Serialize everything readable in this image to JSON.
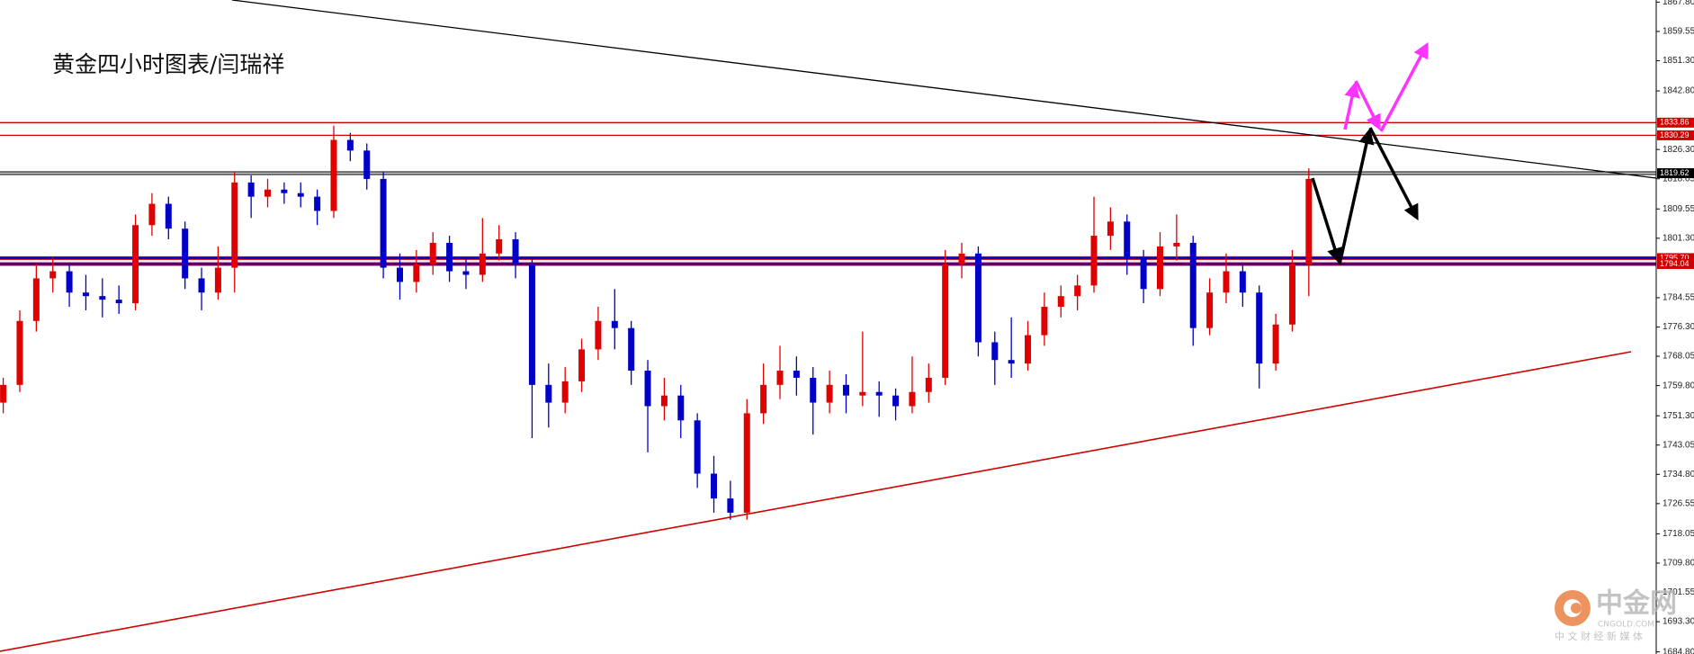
{
  "chart_data": {
    "type": "candlestick",
    "title": "黄金四小时图表/闫瑞祥",
    "up_color": "#e00000",
    "down_color": "#0000c8",
    "ylim": [
      1684.2,
      1868.4
    ],
    "yticks": [
      {
        "value": 1867.8,
        "label": "1867.80"
      },
      1859.55,
      {
        "value": 1851.3,
        "label": "1851.30"
      },
      {
        "value": 1842.8,
        "label": "1842.80"
      },
      {
        "value": 1826.3,
        "label": "1826.30"
      },
      1818.05,
      1809.55,
      {
        "value": 1801.3,
        "label": "1801.30"
      },
      1784.55,
      {
        "value": 1776.3,
        "label": "1776.30"
      },
      1768.05,
      {
        "value": 1759.8,
        "label": "1759.80"
      },
      {
        "value": 1751.3,
        "label": "1751.30"
      },
      1743.05,
      {
        "value": 1734.8,
        "label": "1734.80"
      },
      1726.55,
      1718.05,
      {
        "value": 1709.8,
        "label": "1709.80"
      },
      1701.55,
      {
        "value": 1693.3,
        "label": "1693.30"
      },
      {
        "value": 1684.8,
        "label": "1684.80"
      }
    ],
    "levels": [
      {
        "value": 1833.86,
        "color": "#d00000",
        "box_color": "#d00000"
      },
      {
        "value": 1830.29,
        "color": "#d00000",
        "box_color": "#d00000"
      },
      {
        "value": 1819.62,
        "color": "#c8c8c8",
        "box_color": "#000000"
      },
      {
        "value": 1795.7,
        "label": "1795.70",
        "color": "#0000c8",
        "box_color": "#d00000"
      },
      {
        "value": 1794.04,
        "color": "#0000c8",
        "box_color": "#d00000"
      }
    ],
    "ohlc": [
      [
        1755,
        1762,
        1752,
        1760
      ],
      [
        1760,
        1781,
        1758,
        1778
      ],
      [
        1778,
        1794,
        1775,
        1790
      ],
      [
        1790,
        1796,
        1786,
        1792
      ],
      [
        1792,
        1794,
        1782,
        1786
      ],
      [
        1786,
        1791,
        1781,
        1785
      ],
      [
        1785,
        1790,
        1779,
        1784
      ],
      [
        1784,
        1788,
        1780,
        1783
      ],
      [
        1783,
        1808,
        1781,
        1805
      ],
      [
        1805,
        1814,
        1802,
        1811
      ],
      [
        1811,
        1813,
        1801,
        1804
      ],
      [
        1804,
        1806,
        1787,
        1790
      ],
      [
        1790,
        1793,
        1781,
        1786
      ],
      [
        1786,
        1799,
        1784,
        1793
      ],
      [
        1793,
        1820,
        1786,
        1817
      ],
      [
        1817,
        1819,
        1807,
        1813
      ],
      [
        1813,
        1818,
        1810,
        1815
      ],
      [
        1815,
        1817,
        1811,
        1814
      ],
      [
        1814,
        1817,
        1810,
        1813
      ],
      [
        1813,
        1815,
        1805,
        1809
      ],
      [
        1809,
        1833,
        1807,
        1829
      ],
      [
        1829,
        1831,
        1823,
        1826
      ],
      [
        1826,
        1828,
        1815,
        1818
      ],
      [
        1818,
        1820,
        1790,
        1793
      ],
      [
        1793,
        1797,
        1784,
        1789
      ],
      [
        1789,
        1798,
        1786,
        1794
      ],
      [
        1794,
        1803,
        1791,
        1800
      ],
      [
        1800,
        1802,
        1789,
        1792
      ],
      [
        1792,
        1796,
        1787,
        1791
      ],
      [
        1791,
        1807,
        1789,
        1797
      ],
      [
        1797,
        1805,
        1795,
        1801
      ],
      [
        1801,
        1803,
        1790,
        1794
      ],
      [
        1794,
        1796,
        1745,
        1760
      ],
      [
        1760,
        1766,
        1748,
        1755
      ],
      [
        1755,
        1765,
        1752,
        1761
      ],
      [
        1761,
        1773,
        1758,
        1770
      ],
      [
        1770,
        1782,
        1767,
        1778
      ],
      [
        1778,
        1787,
        1770,
        1776
      ],
      [
        1776,
        1778,
        1760,
        1764
      ],
      [
        1764,
        1767,
        1741,
        1754
      ],
      [
        1754,
        1762,
        1750,
        1757
      ],
      [
        1757,
        1760,
        1745,
        1750
      ],
      [
        1750,
        1752,
        1731,
        1735
      ],
      [
        1735,
        1740,
        1724,
        1728
      ],
      [
        1728,
        1733,
        1722,
        1724
      ],
      [
        1724,
        1756,
        1722,
        1752
      ],
      [
        1752,
        1766,
        1749,
        1760
      ],
      [
        1760,
        1771,
        1756,
        1764
      ],
      [
        1764,
        1768,
        1757,
        1762
      ],
      [
        1762,
        1765,
        1746,
        1755
      ],
      [
        1755,
        1764,
        1752,
        1760
      ],
      [
        1760,
        1763,
        1752,
        1757
      ],
      [
        1757,
        1775,
        1754,
        1758
      ],
      [
        1758,
        1761,
        1751,
        1757
      ],
      [
        1757,
        1759,
        1750,
        1754
      ],
      [
        1754,
        1768,
        1752,
        1758
      ],
      [
        1758,
        1766,
        1755,
        1762
      ],
      [
        1762,
        1798,
        1760,
        1794
      ],
      [
        1794,
        1800,
        1790,
        1797
      ],
      [
        1797,
        1799,
        1768,
        1772
      ],
      [
        1772,
        1775,
        1760,
        1767
      ],
      [
        1767,
        1779,
        1762,
        1766
      ],
      [
        1766,
        1778,
        1764,
        1774
      ],
      [
        1774,
        1786,
        1771,
        1782
      ],
      [
        1782,
        1788,
        1779,
        1785
      ],
      [
        1785,
        1791,
        1781,
        1788
      ],
      [
        1788,
        1813,
        1786,
        1802
      ],
      [
        1802,
        1810,
        1798,
        1806
      ],
      [
        1806,
        1808,
        1791,
        1796
      ],
      [
        1796,
        1798,
        1783,
        1787
      ],
      [
        1787,
        1803,
        1785,
        1799
      ],
      [
        1799,
        1808,
        1795,
        1800
      ],
      [
        1800,
        1802,
        1771,
        1776
      ],
      [
        1776,
        1790,
        1774,
        1786
      ],
      [
        1786,
        1797,
        1783,
        1792
      ],
      [
        1792,
        1794,
        1782,
        1786
      ],
      [
        1786,
        1788,
        1759,
        1766
      ],
      [
        1766,
        1780,
        1764,
        1777
      ],
      [
        1777,
        1798,
        1775,
        1794
      ],
      [
        1794,
        1821,
        1785,
        1818
      ]
    ]
  },
  "watermark": {
    "name": "中金网",
    "site": "CNGOLD.COM",
    "tagline": "中 文 财 经 新 媒 体"
  }
}
